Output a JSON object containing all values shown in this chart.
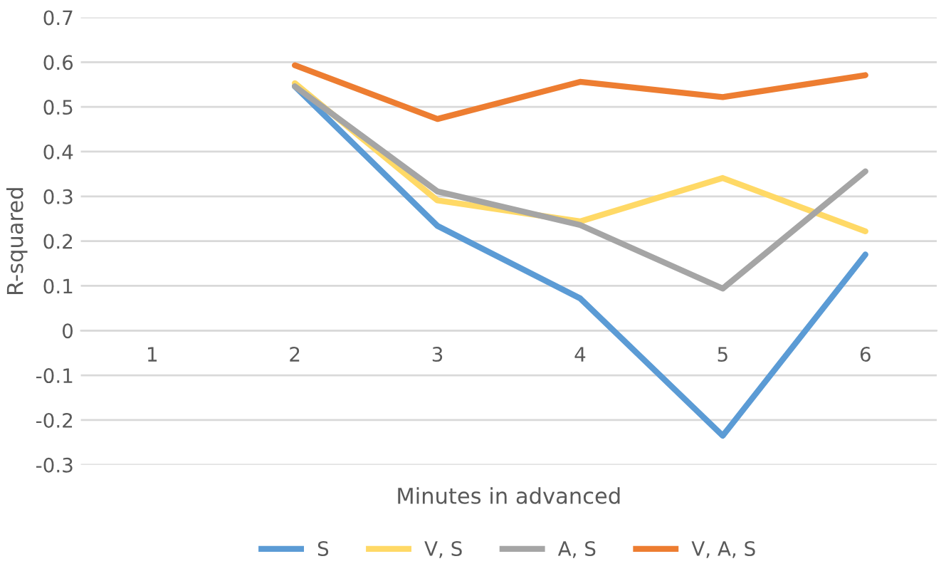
{
  "chart_data": {
    "type": "line",
    "xlabel": "Minutes in advanced",
    "ylabel": "R-squared",
    "categories": [
      "1",
      "2",
      "3",
      "4",
      "5",
      "6"
    ],
    "series": [
      {
        "name": "S",
        "color": "#5b9bd5",
        "values": [
          null,
          0.546,
          0.234,
          0.072,
          -0.235,
          0.17
        ]
      },
      {
        "name": "V, S",
        "color": "#ffd966",
        "values": [
          null,
          0.553,
          0.291,
          0.244,
          0.341,
          0.222
        ]
      },
      {
        "name": "A, S",
        "color": "#a5a5a5",
        "values": [
          null,
          0.546,
          0.311,
          0.236,
          0.094,
          0.356
        ]
      },
      {
        "name": "V, A, S",
        "color": "#ed7d31",
        "values": [
          null,
          0.593,
          0.473,
          0.556,
          0.522,
          0.571
        ]
      }
    ],
    "ylim": [
      -0.3,
      0.7
    ],
    "yticks": [
      -0.3,
      -0.2,
      -0.1,
      0,
      0.1,
      0.2,
      0.3,
      0.4,
      0.5,
      0.6,
      0.7
    ],
    "grid": "y",
    "legend": "bottom",
    "marker": "none",
    "line_style": "solid"
  }
}
